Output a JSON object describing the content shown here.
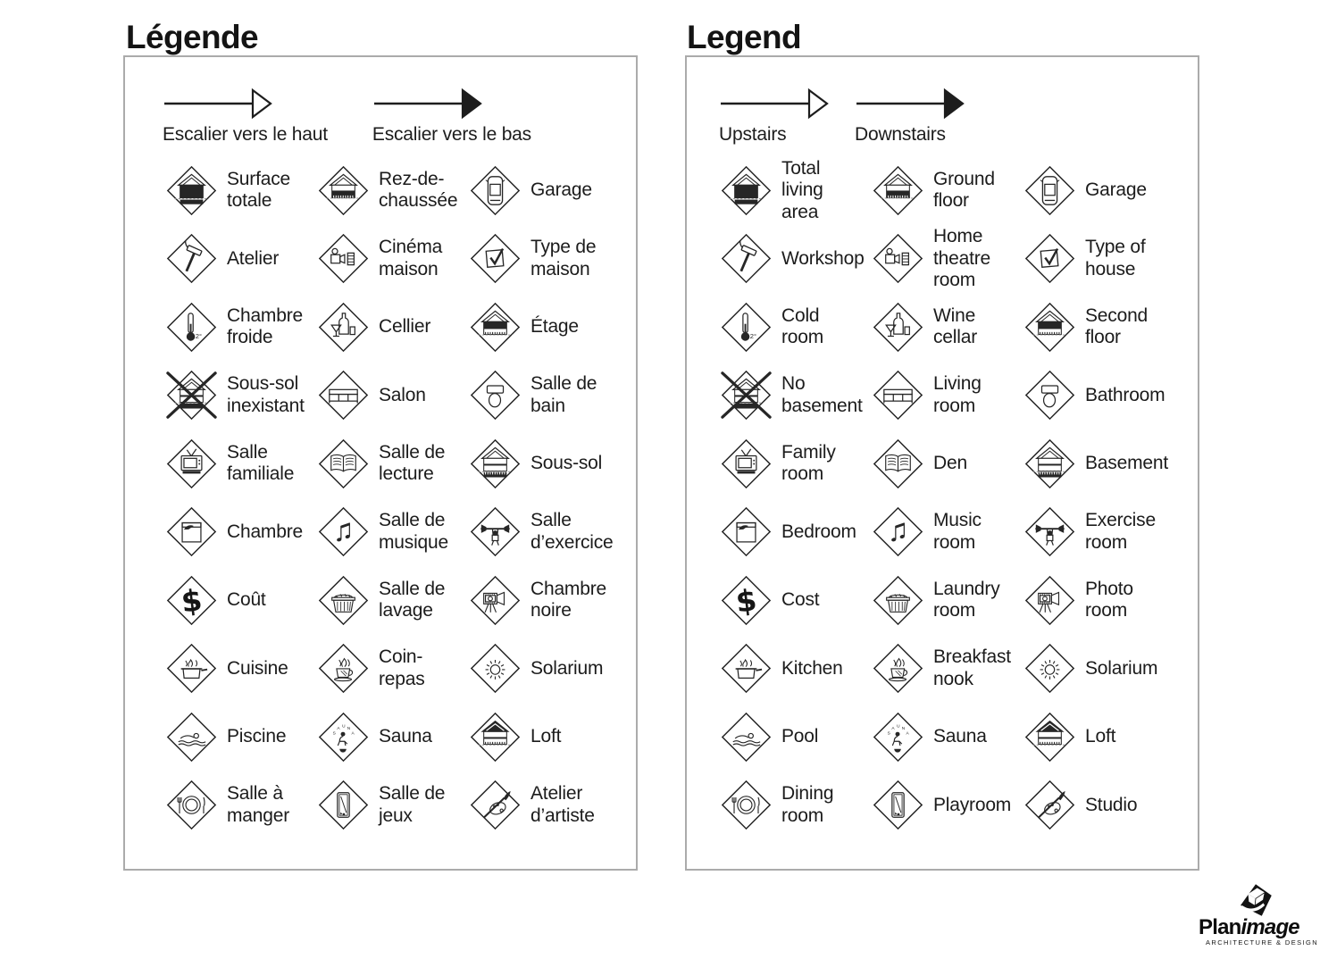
{
  "colors": {
    "ink": "#1c1c1c",
    "panel_border": "#ababab",
    "icon_stroke": "#262626"
  },
  "panels": [
    {
      "id": "fr",
      "title": "Légende",
      "arrows": [
        {
          "style": "open-arrow",
          "direction": "up",
          "label": "Escalier vers le haut"
        },
        {
          "style": "filled-arrow",
          "direction": "down",
          "label": "Escalier vers le bas"
        }
      ],
      "items": [
        {
          "icon": "house-total",
          "label": "Surface\ntotale"
        },
        {
          "icon": "house-ground",
          "label": "Rez-de-\nchaussée"
        },
        {
          "icon": "garage",
          "label": "Garage"
        },
        {
          "icon": "hammer",
          "label": "Atelier"
        },
        {
          "icon": "projector",
          "label": "Cinéma\nmaison"
        },
        {
          "icon": "checkbox",
          "label": "Type de\nmaison"
        },
        {
          "icon": "thermometer",
          "label": "Chambre\nfroide"
        },
        {
          "icon": "wine",
          "label": "Cellier"
        },
        {
          "icon": "house-second",
          "label": "Étage"
        },
        {
          "icon": "house-crossed",
          "label": "Sous-sol\ninexistant"
        },
        {
          "icon": "sofa",
          "label": "Salon"
        },
        {
          "icon": "toilet",
          "label": "Salle de\nbain"
        },
        {
          "icon": "tv",
          "label": "Salle\nfamiliale"
        },
        {
          "icon": "book",
          "label": "Salle de\nlecture"
        },
        {
          "icon": "house-basement",
          "label": "Sous-sol"
        },
        {
          "icon": "bed",
          "label": "Chambre"
        },
        {
          "icon": "music",
          "label": "Salle de\nmusique"
        },
        {
          "icon": "exercise",
          "label": "Salle\nd’exercice"
        },
        {
          "icon": "dollar",
          "label": "Coût"
        },
        {
          "icon": "laundry",
          "label": "Salle de\nlavage"
        },
        {
          "icon": "camera",
          "label": "Chambre\nnoire"
        },
        {
          "icon": "pot",
          "label": "Cuisine"
        },
        {
          "icon": "cup",
          "label": "Coin-\nrepas"
        },
        {
          "icon": "sun",
          "label": "Solarium"
        },
        {
          "icon": "swimmer",
          "label": "Piscine"
        },
        {
          "icon": "sauna",
          "label": "Sauna"
        },
        {
          "icon": "house-loft",
          "label": "Loft"
        },
        {
          "icon": "plate",
          "label": "Salle à\nmanger"
        },
        {
          "icon": "pooltable",
          "label": "Salle de\njeux"
        },
        {
          "icon": "palette",
          "label": "Atelier\nd’artiste"
        }
      ]
    },
    {
      "id": "en",
      "title": "Legend",
      "arrows": [
        {
          "style": "open-arrow",
          "direction": "up",
          "label": "Upstairs"
        },
        {
          "style": "filled-arrow",
          "direction": "down",
          "label": "Downstairs"
        }
      ],
      "items": [
        {
          "icon": "house-total",
          "label": "Total\nliving\narea"
        },
        {
          "icon": "house-ground",
          "label": "Ground\nfloor"
        },
        {
          "icon": "garage",
          "label": "Garage"
        },
        {
          "icon": "hammer",
          "label": "Workshop"
        },
        {
          "icon": "projector",
          "label": "Home\ntheatre\nroom"
        },
        {
          "icon": "checkbox",
          "label": "Type of\nhouse"
        },
        {
          "icon": "thermometer",
          "label": "Cold\nroom"
        },
        {
          "icon": "wine",
          "label": "Wine\ncellar"
        },
        {
          "icon": "house-second",
          "label": "Second\nfloor"
        },
        {
          "icon": "house-crossed",
          "label": "No\nbasement"
        },
        {
          "icon": "sofa",
          "label": "Living\nroom"
        },
        {
          "icon": "toilet",
          "label": "Bathroom"
        },
        {
          "icon": "tv",
          "label": "Family\nroom"
        },
        {
          "icon": "book",
          "label": "Den"
        },
        {
          "icon": "house-basement",
          "label": "Basement"
        },
        {
          "icon": "bed",
          "label": "Bedroom"
        },
        {
          "icon": "music",
          "label": "Music\nroom"
        },
        {
          "icon": "exercise",
          "label": "Exercise\nroom"
        },
        {
          "icon": "dollar",
          "label": "Cost"
        },
        {
          "icon": "laundry",
          "label": "Laundry\nroom"
        },
        {
          "icon": "camera",
          "label": "Photo\nroom"
        },
        {
          "icon": "pot",
          "label": "Kitchen"
        },
        {
          "icon": "cup",
          "label": "Breakfast\nnook"
        },
        {
          "icon": "sun",
          "label": "Solarium"
        },
        {
          "icon": "swimmer",
          "label": "Pool"
        },
        {
          "icon": "sauna",
          "label": "Sauna"
        },
        {
          "icon": "house-loft",
          "label": "Loft"
        },
        {
          "icon": "plate",
          "label": "Dining\nroom"
        },
        {
          "icon": "pooltable",
          "label": "Playroom"
        },
        {
          "icon": "palette",
          "label": "Studio"
        }
      ]
    }
  ],
  "logo": {
    "brand_bold": "Plan",
    "brand_italic": "image",
    "tagline": "ARCHITECTURE & DESIGN"
  }
}
